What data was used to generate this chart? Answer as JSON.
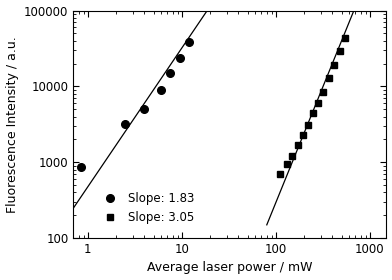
{
  "title": "",
  "xlabel": "Average laser power / mW",
  "ylabel": "Fluorescence Intensity / a.u.",
  "xlim": [
    0.7,
    1500
  ],
  "ylim": [
    100,
    100000
  ],
  "circles_x": [
    0.85,
    2.5,
    4.0,
    6.0,
    7.5,
    9.5,
    12.0
  ],
  "circles_y": [
    870,
    3200,
    5000,
    9000,
    15000,
    24000,
    38000
  ],
  "circles_slope": 1.83,
  "squares_x": [
    110,
    130,
    150,
    170,
    195,
    220,
    250,
    280,
    320,
    370,
    420,
    480,
    550
  ],
  "squares_y": [
    700,
    950,
    1200,
    1700,
    2300,
    3100,
    4400,
    6000,
    8500,
    13000,
    19000,
    29000,
    44000
  ],
  "squares_slope": 3.05,
  "line_color": "black",
  "marker_color": "black",
  "background_color": "white",
  "legend_loc": "lower left",
  "legend_fontsize": 8.5,
  "axis_fontsize": 9,
  "tick_fontsize": 8.5
}
